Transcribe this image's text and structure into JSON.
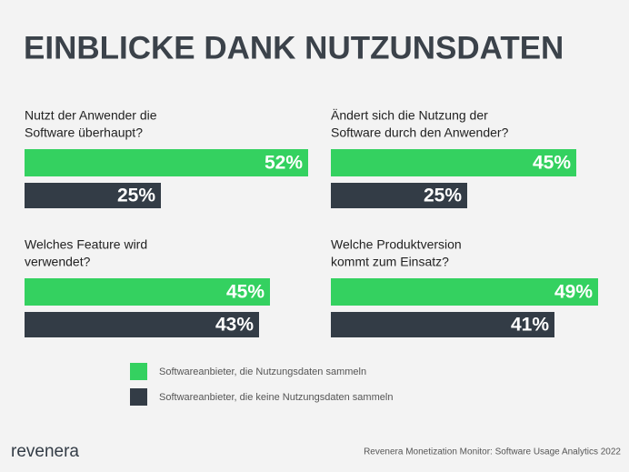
{
  "title": "EINBLICKE DANK NUTZUNSDATEN",
  "series": [
    {
      "name": "Softwareanbieter, die Nutzungsdaten sammeln",
      "color": "#34d160"
    },
    {
      "name": "Softwareanbieter, die keine Nutzungsdaten sammeln",
      "color": "#333c46"
    }
  ],
  "chart_data": [
    {
      "type": "bar",
      "title": [
        "Nutzt der Anwender die",
        "Software überhaupt?"
      ],
      "values": [
        52,
        25
      ],
      "value_labels": [
        "52%",
        "25%"
      ],
      "xlim": [
        0,
        100
      ]
    },
    {
      "type": "bar",
      "title": [
        "Ändert sich die Nutzung der",
        "Software durch den Anwender?"
      ],
      "values": [
        45,
        25
      ],
      "value_labels": [
        "45%",
        "25%"
      ],
      "xlim": [
        0,
        100
      ]
    },
    {
      "type": "bar",
      "title": [
        "Welches Feature wird",
        "verwendet?"
      ],
      "values": [
        45,
        43
      ],
      "value_labels": [
        "45%",
        "43%"
      ],
      "xlim": [
        0,
        100
      ]
    },
    {
      "type": "bar",
      "title": [
        "Welche Produktversion",
        "kommt zum Einsatz?"
      ],
      "values": [
        49,
        41
      ],
      "value_labels": [
        "49%",
        "41%"
      ],
      "xlim": [
        0,
        100
      ]
    }
  ],
  "logo": "revenera",
  "source": "Revenera Monetization Monitor: Software Usage Analytics 2022"
}
